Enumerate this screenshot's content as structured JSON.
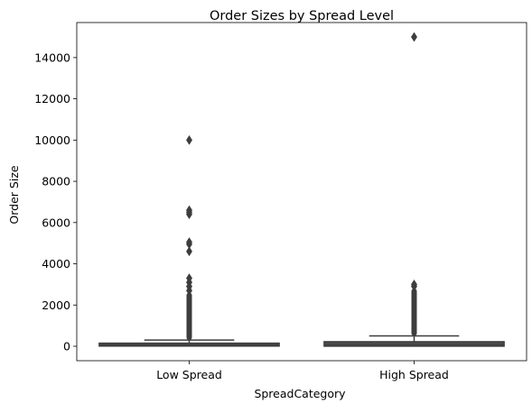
{
  "chart_data": {
    "type": "box",
    "title": "Order Sizes by Spread Level",
    "xlabel": "SpreadCategory",
    "ylabel": "Order Size",
    "categories": [
      "Low Spread",
      "High Spread"
    ],
    "ylim": [
      -700,
      15700
    ],
    "yticks": [
      0,
      2000,
      4000,
      6000,
      8000,
      10000,
      12000,
      14000
    ],
    "ytick_labels": [
      "0",
      "2000",
      "4000",
      "6000",
      "8000",
      "10000",
      "12000",
      "14000"
    ],
    "grid": false,
    "legend": "none",
    "box_color": "#3d3d3d",
    "boxes": [
      {
        "category": "Low Spread",
        "whisker_low": 1,
        "q1": 10,
        "median": 50,
        "q3": 150,
        "whisker_high": 300,
        "outlier_band": [
          300,
          2600
        ],
        "outliers": [
          2700,
          2900,
          3100,
          3300,
          4600,
          4950,
          5050,
          6400,
          6500,
          6600,
          10000
        ]
      },
      {
        "category": "High Spread",
        "whisker_low": 1,
        "q1": 5,
        "median": 40,
        "q3": 220,
        "whisker_high": 500,
        "outlier_band": [
          500,
          2800
        ],
        "outliers": [
          2900,
          3000,
          15000
        ]
      }
    ]
  }
}
